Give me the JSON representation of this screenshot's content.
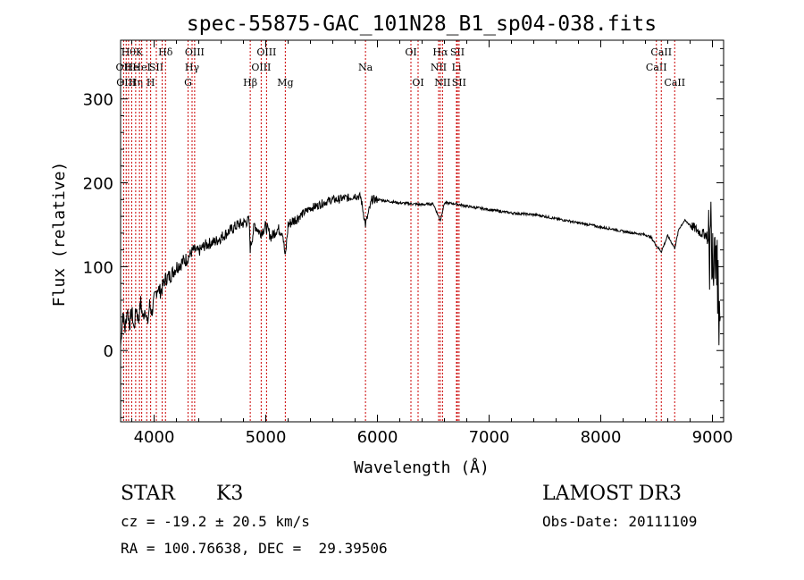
{
  "chart_data": {
    "type": "line",
    "title": "spec-55875-GAC_101N28_B1_sp04-038.fits",
    "xlabel": "Wavelength (Å)",
    "ylabel": "Flux (relative)",
    "xlim": [
      3700,
      9100
    ],
    "ylim": [
      -85,
      370
    ],
    "xticks": [
      4000,
      5000,
      6000,
      7000,
      8000,
      9000
    ],
    "yticks": [
      0,
      100,
      200,
      300
    ],
    "grid": false,
    "legend": "none",
    "series": [
      {
        "name": "flux",
        "x": [
          3700,
          3720,
          3740,
          3760,
          3780,
          3800,
          3820,
          3840,
          3860,
          3880,
          3900,
          3920,
          3940,
          3960,
          3980,
          4000,
          4030,
          4060,
          4100,
          4150,
          4200,
          4250,
          4300,
          4350,
          4400,
          4450,
          4500,
          4550,
          4600,
          4650,
          4700,
          4750,
          4800,
          4850,
          4861,
          4900,
          4950,
          5000,
          5050,
          5100,
          5150,
          5175,
          5200,
          5250,
          5300,
          5350,
          5400,
          5450,
          5500,
          5550,
          5600,
          5650,
          5700,
          5750,
          5800,
          5850,
          5893,
          5950,
          6000,
          6100,
          6200,
          6300,
          6400,
          6500,
          6563,
          6600,
          6700,
          6800,
          6900,
          7000,
          7100,
          7200,
          7300,
          7400,
          7500,
          7600,
          7700,
          7800,
          7900,
          8000,
          8100,
          8200,
          8300,
          8400,
          8450,
          8498,
          8542,
          8600,
          8662,
          8700,
          8750,
          8800,
          8850,
          8900,
          8950,
          8970,
          8990,
          9010,
          9030,
          9050,
          9070
        ],
        "values": [
          5,
          45,
          25,
          50,
          30,
          48,
          25,
          52,
          35,
          58,
          38,
          52,
          30,
          55,
          45,
          60,
          75,
          70,
          85,
          90,
          100,
          105,
          110,
          120,
          118,
          125,
          128,
          130,
          135,
          140,
          145,
          150,
          152,
          155,
          122,
          150,
          140,
          148,
          135,
          145,
          142,
          110,
          150,
          155,
          160,
          165,
          170,
          172,
          175,
          178,
          180,
          180,
          182,
          182,
          185,
          183,
          150,
          180,
          180,
          178,
          176,
          175,
          174,
          175,
          155,
          176,
          175,
          172,
          170,
          168,
          166,
          164,
          163,
          162,
          160,
          157,
          155,
          152,
          150,
          147,
          145,
          142,
          140,
          138,
          135,
          125,
          118,
          137,
          122,
          145,
          155,
          150,
          145,
          140,
          138,
          110,
          150,
          120,
          155,
          80,
          40
        ]
      }
    ],
    "lines": [
      {
        "wl": 3727,
        "label": "OII",
        "row": 1
      },
      {
        "wl": 3750,
        "label": "OIII",
        "row": 2
      },
      {
        "wl": 3771,
        "label": "Hθ",
        "row": 0
      },
      {
        "wl": 3800,
        "label": "He",
        "row": 1
      },
      {
        "wl": 3835,
        "label": "Hη",
        "row": 2
      },
      {
        "wl": 3869,
        "label": "K",
        "row": 0
      },
      {
        "wl": 3889,
        "label": "HeI",
        "row": 1
      },
      {
        "wl": 3934,
        "label": "",
        "row": 0
      },
      {
        "wl": 3969,
        "label": "H",
        "row": 2
      },
      {
        "wl": 4020,
        "label": "SII",
        "row": 1
      },
      {
        "wl": 4072,
        "label": "",
        "row": 1
      },
      {
        "wl": 4102,
        "label": "Hδ",
        "row": 0
      },
      {
        "wl": 4304,
        "label": "G",
        "row": 2
      },
      {
        "wl": 4340,
        "label": "Hγ",
        "row": 1
      },
      {
        "wl": 4363,
        "label": "OIII",
        "row": 0
      },
      {
        "wl": 4861,
        "label": "Hβ",
        "row": 2
      },
      {
        "wl": 4959,
        "label": "OIII",
        "row": 1
      },
      {
        "wl": 5007,
        "label": "OIII",
        "row": 0
      },
      {
        "wl": 5175,
        "label": "Mg",
        "row": 2
      },
      {
        "wl": 5893,
        "label": "Na",
        "row": 1
      },
      {
        "wl": 6300,
        "label": "OI",
        "row": 0
      },
      {
        "wl": 6364,
        "label": "OI",
        "row": 2
      },
      {
        "wl": 6548,
        "label": "NII",
        "row": 1
      },
      {
        "wl": 6563,
        "label": "Hα",
        "row": 0
      },
      {
        "wl": 6583,
        "label": "NII",
        "row": 2
      },
      {
        "wl": 6708,
        "label": "Li",
        "row": 1
      },
      {
        "wl": 6716,
        "label": "SII",
        "row": 0
      },
      {
        "wl": 6731,
        "label": "SII",
        "row": 2
      },
      {
        "wl": 8498,
        "label": "CaII",
        "row": 1
      },
      {
        "wl": 8542,
        "label": "CaII",
        "row": 0
      },
      {
        "wl": 8662,
        "label": "CaII",
        "row": 2
      }
    ],
    "colors": {
      "line_marker": "#cc0000",
      "spectrum": "#000000"
    }
  },
  "info": {
    "class": "STAR",
    "subclass": "K3",
    "survey": "LAMOST DR3",
    "redshift": "cz = -19.2 ± 20.5 km/s",
    "obsdate": "Obs-Date: 20111109",
    "coords": "RA = 100.76638, DEC =  29.39506"
  }
}
